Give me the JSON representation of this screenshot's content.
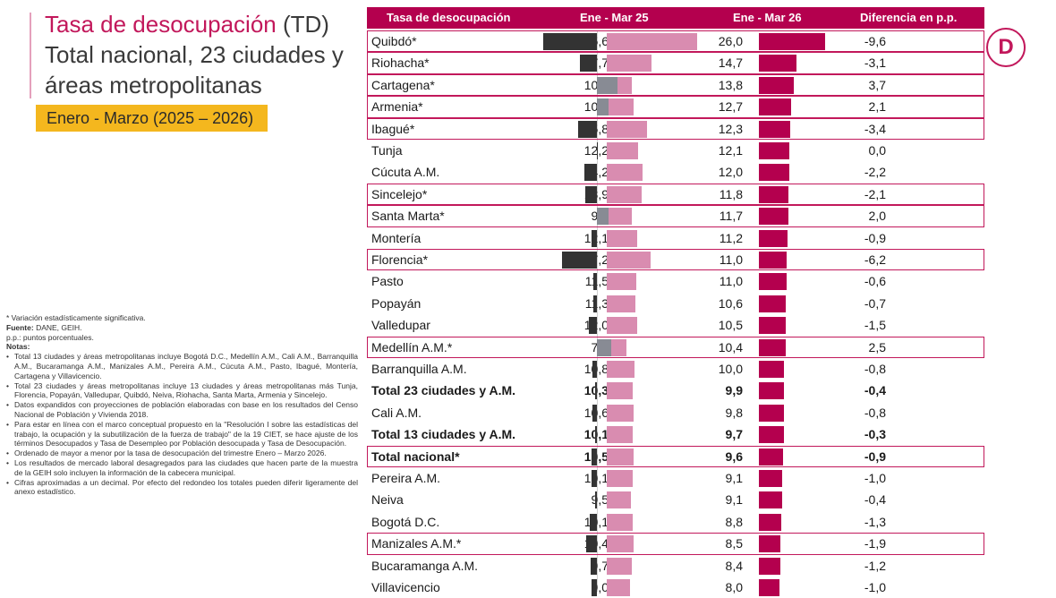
{
  "title": {
    "line1_a": "Tasa de desocupación",
    "line1_b": " (TD)",
    "line2": "Total nacional, 23 ciudades y",
    "line3": "áreas metropolitanas"
  },
  "period": "Enero - Marzo (2025 – 2026)",
  "logo_letter": "D",
  "colors": {
    "accent": "#b4004e",
    "bar_2025": "#d98cb0",
    "bar_2026": "#b4004e",
    "diff_neg": "#333333",
    "diff_pos": "#888b94",
    "period_bg": "#f4b71e"
  },
  "notes": {
    "sig": "* Variación estadísticamente significativa.",
    "fuente_label": "Fuente:",
    "fuente": " DANE, GEIH.",
    "pp": "p.p.: puntos porcentuales.",
    "notas_label": "Notas:",
    "items": [
      "Total 13 ciudades y áreas metropolitanas incluye Bogotá D.C., Medellín A.M., Cali A.M., Barranquilla A.M., Bucaramanga A.M., Manizales A.M., Pereira A.M., Cúcuta A.M., Pasto, Ibagué, Montería, Cartagena y Villavicencio.",
      "Total 23 ciudades y áreas metropolitanas incluye 13 ciudades y áreas metropolitanas más Tunja, Florencia, Popayán, Valledupar, Quibdó, Neiva, Riohacha, Santa Marta, Armenia y Sincelejo.",
      "Datos expandidos con proyecciones de población elaboradas con base en los resultados del Censo Nacional de Población y Vivienda 2018.",
      "Para estar en línea con el marco conceptual propuesto en la \"Resolución I sobre las estadísticas del trabajo, la ocupación y la subutilización de la fuerza de trabajo\" de la 19 CIET, se hace ajuste de los términos Desocupados y Tasa de Desempleo por Población desocupada y Tasa de Desocupación.",
      "Ordenado de mayor a menor por la tasa de desocupación del trimestre Enero – Marzo 2026.",
      "Los resultados de mercado laboral desagregados para las ciudades que hacen parte de la muestra de la GEIH solo incluyen la información de la cabecera municipal.",
      "Cifras aproximadas a un decimal. Por efecto del redondeo los totales pueden diferir ligeramente del anexo estadístico."
    ]
  },
  "chart_data": {
    "type": "table",
    "columns": [
      "Tasa de desocupación",
      "Ene - Mar 25",
      "Ene - Mar 26",
      "Diferencia en p.p."
    ],
    "rows": [
      {
        "city": "Quibdó*",
        "v2025": "35,6",
        "v2026": "26,0",
        "diff": "-9,6",
        "n2025": 35.6,
        "n2026": 26.0,
        "ndiff": -9.6,
        "significant": true,
        "bold": false
      },
      {
        "city": "Riohacha*",
        "v2025": "17,7",
        "v2026": "14,7",
        "diff": "-3,1",
        "n2025": 17.7,
        "n2026": 14.7,
        "ndiff": -3.1,
        "significant": true,
        "bold": false
      },
      {
        "city": "Cartagena*",
        "v2025": "10,0",
        "v2026": "13,8",
        "diff": "3,7",
        "n2025": 10.0,
        "n2026": 13.8,
        "ndiff": 3.7,
        "significant": true,
        "bold": false
      },
      {
        "city": "Armenia*",
        "v2025": "10,6",
        "v2026": "12,7",
        "diff": "2,1",
        "n2025": 10.6,
        "n2026": 12.7,
        "ndiff": 2.1,
        "significant": true,
        "bold": false
      },
      {
        "city": "Ibagué*",
        "v2025": "15,8",
        "v2026": "12,3",
        "diff": "-3,4",
        "n2025": 15.8,
        "n2026": 12.3,
        "ndiff": -3.4,
        "significant": true,
        "bold": false
      },
      {
        "city": "Tunja",
        "v2025": "12,2",
        "v2026": "12,1",
        "diff": "0,0",
        "n2025": 12.2,
        "n2026": 12.1,
        "ndiff": 0.0,
        "significant": false,
        "bold": false
      },
      {
        "city": "Cúcuta A.M.",
        "v2025": "14,2",
        "v2026": "12,0",
        "diff": "-2,2",
        "n2025": 14.2,
        "n2026": 12.0,
        "ndiff": -2.2,
        "significant": false,
        "bold": false
      },
      {
        "city": "Sincelejo*",
        "v2025": "13,9",
        "v2026": "11,8",
        "diff": "-2,1",
        "n2025": 13.9,
        "n2026": 11.8,
        "ndiff": -2.1,
        "significant": true,
        "bold": false
      },
      {
        "city": "Santa Marta*",
        "v2025": "9,8",
        "v2026": "11,7",
        "diff": "2,0",
        "n2025": 9.8,
        "n2026": 11.7,
        "ndiff": 2.0,
        "significant": true,
        "bold": false
      },
      {
        "city": "Montería",
        "v2025": "12,1",
        "v2026": "11,2",
        "diff": "-0,9",
        "n2025": 12.1,
        "n2026": 11.2,
        "ndiff": -0.9,
        "significant": false,
        "bold": false
      },
      {
        "city": "Florencia*",
        "v2025": "17,2",
        "v2026": "11,0",
        "diff": "-6,2",
        "n2025": 17.2,
        "n2026": 11.0,
        "ndiff": -6.2,
        "significant": true,
        "bold": false
      },
      {
        "city": "Pasto",
        "v2025": "11,5",
        "v2026": "11,0",
        "diff": "-0,6",
        "n2025": 11.5,
        "n2026": 11.0,
        "ndiff": -0.6,
        "significant": false,
        "bold": false
      },
      {
        "city": "Popayán",
        "v2025": "11,3",
        "v2026": "10,6",
        "diff": "-0,7",
        "n2025": 11.3,
        "n2026": 10.6,
        "ndiff": -0.7,
        "significant": false,
        "bold": false
      },
      {
        "city": "Valledupar",
        "v2025": "12,0",
        "v2026": "10,5",
        "diff": "-1,5",
        "n2025": 12.0,
        "n2026": 10.5,
        "ndiff": -1.5,
        "significant": false,
        "bold": false
      },
      {
        "city": "Medellín A.M.*",
        "v2025": "7,9",
        "v2026": "10,4",
        "diff": "2,5",
        "n2025": 7.9,
        "n2026": 10.4,
        "ndiff": 2.5,
        "significant": true,
        "bold": false
      },
      {
        "city": "Barranquilla A.M.",
        "v2025": "10,8",
        "v2026": "10,0",
        "diff": "-0,8",
        "n2025": 10.8,
        "n2026": 10.0,
        "ndiff": -0.8,
        "significant": false,
        "bold": false
      },
      {
        "city": "Total 23 ciudades y A.M.",
        "v2025": "10,3",
        "v2026": "9,9",
        "diff": "-0,4",
        "n2025": 10.3,
        "n2026": 9.9,
        "ndiff": -0.4,
        "significant": false,
        "bold": true
      },
      {
        "city": "Cali A.M.",
        "v2025": "10,6",
        "v2026": "9,8",
        "diff": "-0,8",
        "n2025": 10.6,
        "n2026": 9.8,
        "ndiff": -0.8,
        "significant": false,
        "bold": false
      },
      {
        "city": "Total 13 ciudades y A.M.",
        "v2025": "10,1",
        "v2026": "9,7",
        "diff": "-0,3",
        "n2025": 10.1,
        "n2026": 9.7,
        "ndiff": -0.3,
        "significant": false,
        "bold": true
      },
      {
        "city": "Total nacional*",
        "v2025": "10,5",
        "v2026": "9,6",
        "diff": "-0,9",
        "n2025": 10.5,
        "n2026": 9.6,
        "ndiff": -0.9,
        "significant": true,
        "bold": true
      },
      {
        "city": "Pereira A.M.",
        "v2025": "10,1",
        "v2026": "9,1",
        "diff": "-1,0",
        "n2025": 10.1,
        "n2026": 9.1,
        "ndiff": -1.0,
        "significant": false,
        "bold": false
      },
      {
        "city": "Neiva",
        "v2025": "9,5",
        "v2026": "9,1",
        "diff": "-0,4",
        "n2025": 9.5,
        "n2026": 9.1,
        "ndiff": -0.4,
        "significant": false,
        "bold": false
      },
      {
        "city": "Bogotá D.C.",
        "v2025": "10,1",
        "v2026": "8,8",
        "diff": "-1,3",
        "n2025": 10.1,
        "n2026": 8.8,
        "ndiff": -1.3,
        "significant": false,
        "bold": false
      },
      {
        "city": "Manizales A.M.*",
        "v2025": "10,4",
        "v2026": "8,5",
        "diff": "-1,9",
        "n2025": 10.4,
        "n2026": 8.5,
        "ndiff": -1.9,
        "significant": true,
        "bold": false
      },
      {
        "city": "Bucaramanga A.M.",
        "v2025": "9,7",
        "v2026": "8,4",
        "diff": "-1,2",
        "n2025": 9.7,
        "n2026": 8.4,
        "ndiff": -1.2,
        "significant": false,
        "bold": false
      },
      {
        "city": "Villavicencio",
        "v2025": "9,0",
        "v2026": "8,0",
        "diff": "-1,0",
        "n2025": 9.0,
        "n2026": 8.0,
        "ndiff": -1.0,
        "significant": false,
        "bold": false
      }
    ]
  }
}
